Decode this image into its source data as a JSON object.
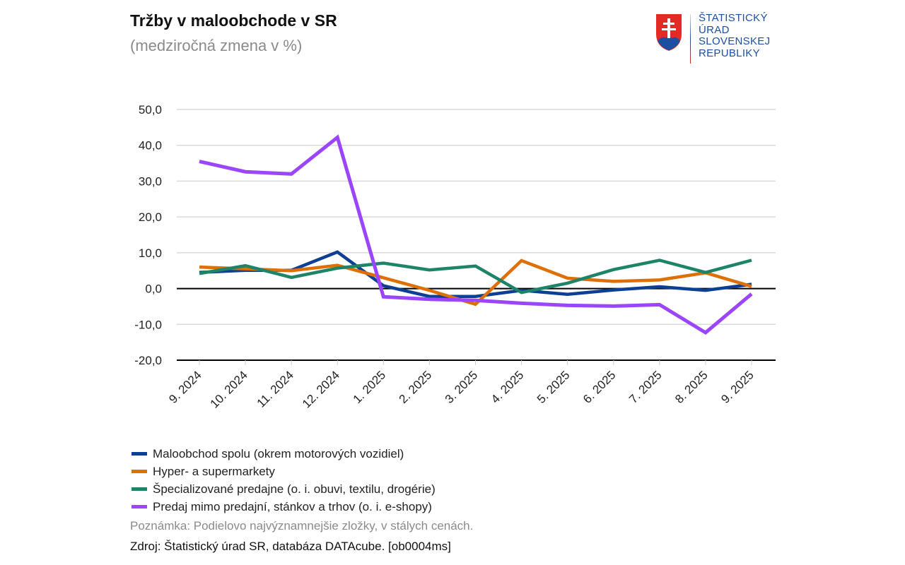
{
  "header": {
    "title": "Tržby v maloobchode v SR",
    "subtitle": "(medziročná zmena v %)"
  },
  "logo": {
    "lines": [
      "ŠTATISTICKÝ",
      "ÚRAD",
      "SLOVENSKEJ",
      "REPUBLIKY"
    ]
  },
  "chart_data": {
    "type": "line",
    "title": "Tržby v maloobchode v SR",
    "subtitle": "(medziročná zmena v %)",
    "categories": [
      "9. 2024",
      "10. 2024",
      "11. 2024",
      "12. 2024",
      "1. 2025",
      "2. 2025",
      "3. 2025",
      "4. 2025",
      "5. 2025",
      "6. 2025",
      "7. 2025",
      "8. 2025",
      "9. 2025"
    ],
    "ylim": [
      -20,
      50
    ],
    "yticks": [
      50,
      40,
      30,
      20,
      10,
      0,
      -10,
      -20
    ],
    "ytick_labels": [
      "50,0",
      "40,0",
      "30,0",
      "20,0",
      "10,0",
      "0,0",
      "-10,0",
      "-20,0"
    ],
    "grid": true,
    "legend": "bottom",
    "series": [
      {
        "name": "Maloobchod spolu (okrem motorových vozidiel)",
        "color": "#0d3f94",
        "values": [
          4.5,
          5.1,
          5.1,
          10.2,
          0.8,
          -2.2,
          -2.2,
          -0.5,
          -1.6,
          -0.4,
          0.5,
          -0.5,
          1.2
        ]
      },
      {
        "name": "Hyper- a supermarkety",
        "color": "#dd6f05",
        "values": [
          6.0,
          5.5,
          5.0,
          6.5,
          3.0,
          -0.5,
          -4.4,
          7.8,
          2.9,
          2.0,
          2.4,
          4.4,
          0.6
        ]
      },
      {
        "name": "Špecializované predajne (o. i. obuvi, textilu, drogérie)",
        "color": "#1e8468",
        "values": [
          4.2,
          6.4,
          3.1,
          5.7,
          7.1,
          5.2,
          6.3,
          -1.1,
          1.5,
          5.3,
          7.9,
          4.5,
          7.9
        ]
      },
      {
        "name": "Predaj mimo predajní, stánkov a trhov (o. i. e-shopy)",
        "color": "#9b45ff",
        "values": [
          35.5,
          32.6,
          32.0,
          42.2,
          -2.3,
          -3.0,
          -3.3,
          -4.1,
          -4.7,
          -4.9,
          -4.5,
          -12.3,
          -1.5
        ]
      }
    ]
  },
  "footer": {
    "note": "Poznámka: Podielovo najvýznamnejšie zložky, v stálych cenách.",
    "source": "Zdroj: Štatistický úrad SR, databáza DATAcube. [ob0004ms]"
  }
}
